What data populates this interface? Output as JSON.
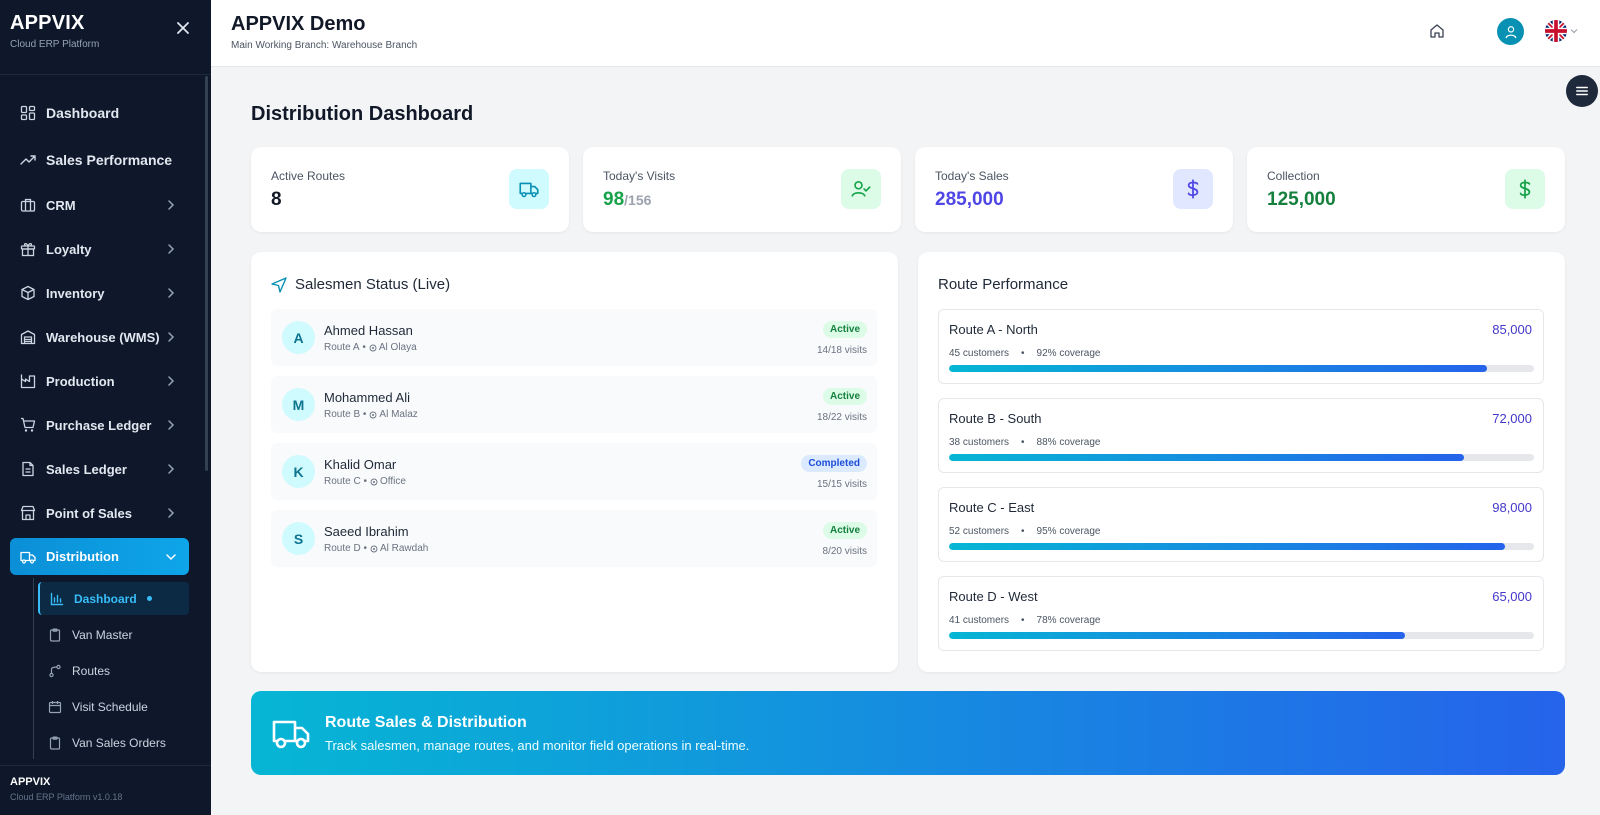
{
  "sidebar": {
    "brand": "APPVIX",
    "brand_sub": "Cloud ERP Platform",
    "items": [
      {
        "label": "Dashboard",
        "icon": "grid-icon"
      },
      {
        "label": "Sales Performance",
        "icon": "trending-up-icon"
      },
      {
        "label": "CRM",
        "icon": "briefcase-icon"
      },
      {
        "label": "Loyalty",
        "icon": "gift-icon"
      },
      {
        "label": "Inventory",
        "icon": "box-icon"
      },
      {
        "label": "Warehouse (WMS)",
        "icon": "warehouse-icon"
      },
      {
        "label": "Production",
        "icon": "factory-icon"
      },
      {
        "label": "Purchase Ledger",
        "icon": "cart-icon"
      },
      {
        "label": "Sales Ledger",
        "icon": "file-icon"
      },
      {
        "label": "Point of Sales",
        "icon": "store-icon"
      },
      {
        "label": "Distribution",
        "icon": "truck-icon"
      }
    ],
    "sub_items": [
      {
        "label": "Dashboard",
        "icon": "bar-chart-icon"
      },
      {
        "label": "Van Master",
        "icon": "clipboard-icon"
      },
      {
        "label": "Routes",
        "icon": "route-icon"
      },
      {
        "label": "Visit Schedule",
        "icon": "calendar-icon"
      },
      {
        "label": "Van Sales Orders",
        "icon": "clipboard-icon"
      }
    ],
    "footer_title": "APPVIX",
    "footer_sub": "Cloud ERP Platform v1.0.18"
  },
  "header": {
    "title": "APPVIX Demo",
    "subtitle": "Main Working Branch: Warehouse Branch"
  },
  "page": {
    "title": "Distribution Dashboard"
  },
  "stats": [
    {
      "label": "Active Routes",
      "value": "8",
      "suffix": "",
      "color": "#111827",
      "icon": "truck-icon",
      "bg": "#cffafe",
      "fg": "#0891b2"
    },
    {
      "label": "Today's Visits",
      "value": "98",
      "suffix": "/156",
      "color": "#16a34a",
      "icon": "user-check-icon",
      "bg": "#dcfce7",
      "fg": "#16a34a"
    },
    {
      "label": "Today's Sales",
      "value": "285,000",
      "suffix": "",
      "color": "#4f46e5",
      "icon": "dollar-icon",
      "bg": "#e0e7ff",
      "fg": "#4f46e5"
    },
    {
      "label": "Collection",
      "value": "125,000",
      "suffix": "",
      "color": "#15803d",
      "icon": "dollar-icon",
      "bg": "#dcfce7",
      "fg": "#16a34a"
    }
  ],
  "salesmen": {
    "title": "Salesmen Status (Live)",
    "rows": [
      {
        "initial": "A",
        "name": "Ahmed Hassan",
        "route": "Route A",
        "location": "Al Olaya",
        "status": "Active",
        "visits": "14/18 visits"
      },
      {
        "initial": "M",
        "name": "Mohammed Ali",
        "route": "Route B",
        "location": "Al Malaz",
        "status": "Active",
        "visits": "18/22 visits"
      },
      {
        "initial": "K",
        "name": "Khalid Omar",
        "route": "Route C",
        "location": "Office",
        "status": "Completed",
        "visits": "15/15 visits"
      },
      {
        "initial": "S",
        "name": "Saeed Ibrahim",
        "route": "Route D",
        "location": "Al Rawdah",
        "status": "Active",
        "visits": "8/20 visits"
      }
    ]
  },
  "routes": {
    "title": "Route Performance",
    "rows": [
      {
        "name": "Route A - North",
        "amount": "85,000",
        "customers": "45 customers",
        "coverage": "92% coverage",
        "coverage_pct": 92
      },
      {
        "name": "Route B - South",
        "amount": "72,000",
        "customers": "38 customers",
        "coverage": "88% coverage",
        "coverage_pct": 88
      },
      {
        "name": "Route C - East",
        "amount": "98,000",
        "customers": "52 customers",
        "coverage": "95% coverage",
        "coverage_pct": 95
      },
      {
        "name": "Route D - West",
        "amount": "65,000",
        "customers": "41 customers",
        "coverage": "78% coverage",
        "coverage_pct": 78
      }
    ]
  },
  "banner": {
    "title": "Route Sales & Distribution",
    "subtitle": "Track salesmen, manage routes, and monitor field operations in real-time."
  }
}
